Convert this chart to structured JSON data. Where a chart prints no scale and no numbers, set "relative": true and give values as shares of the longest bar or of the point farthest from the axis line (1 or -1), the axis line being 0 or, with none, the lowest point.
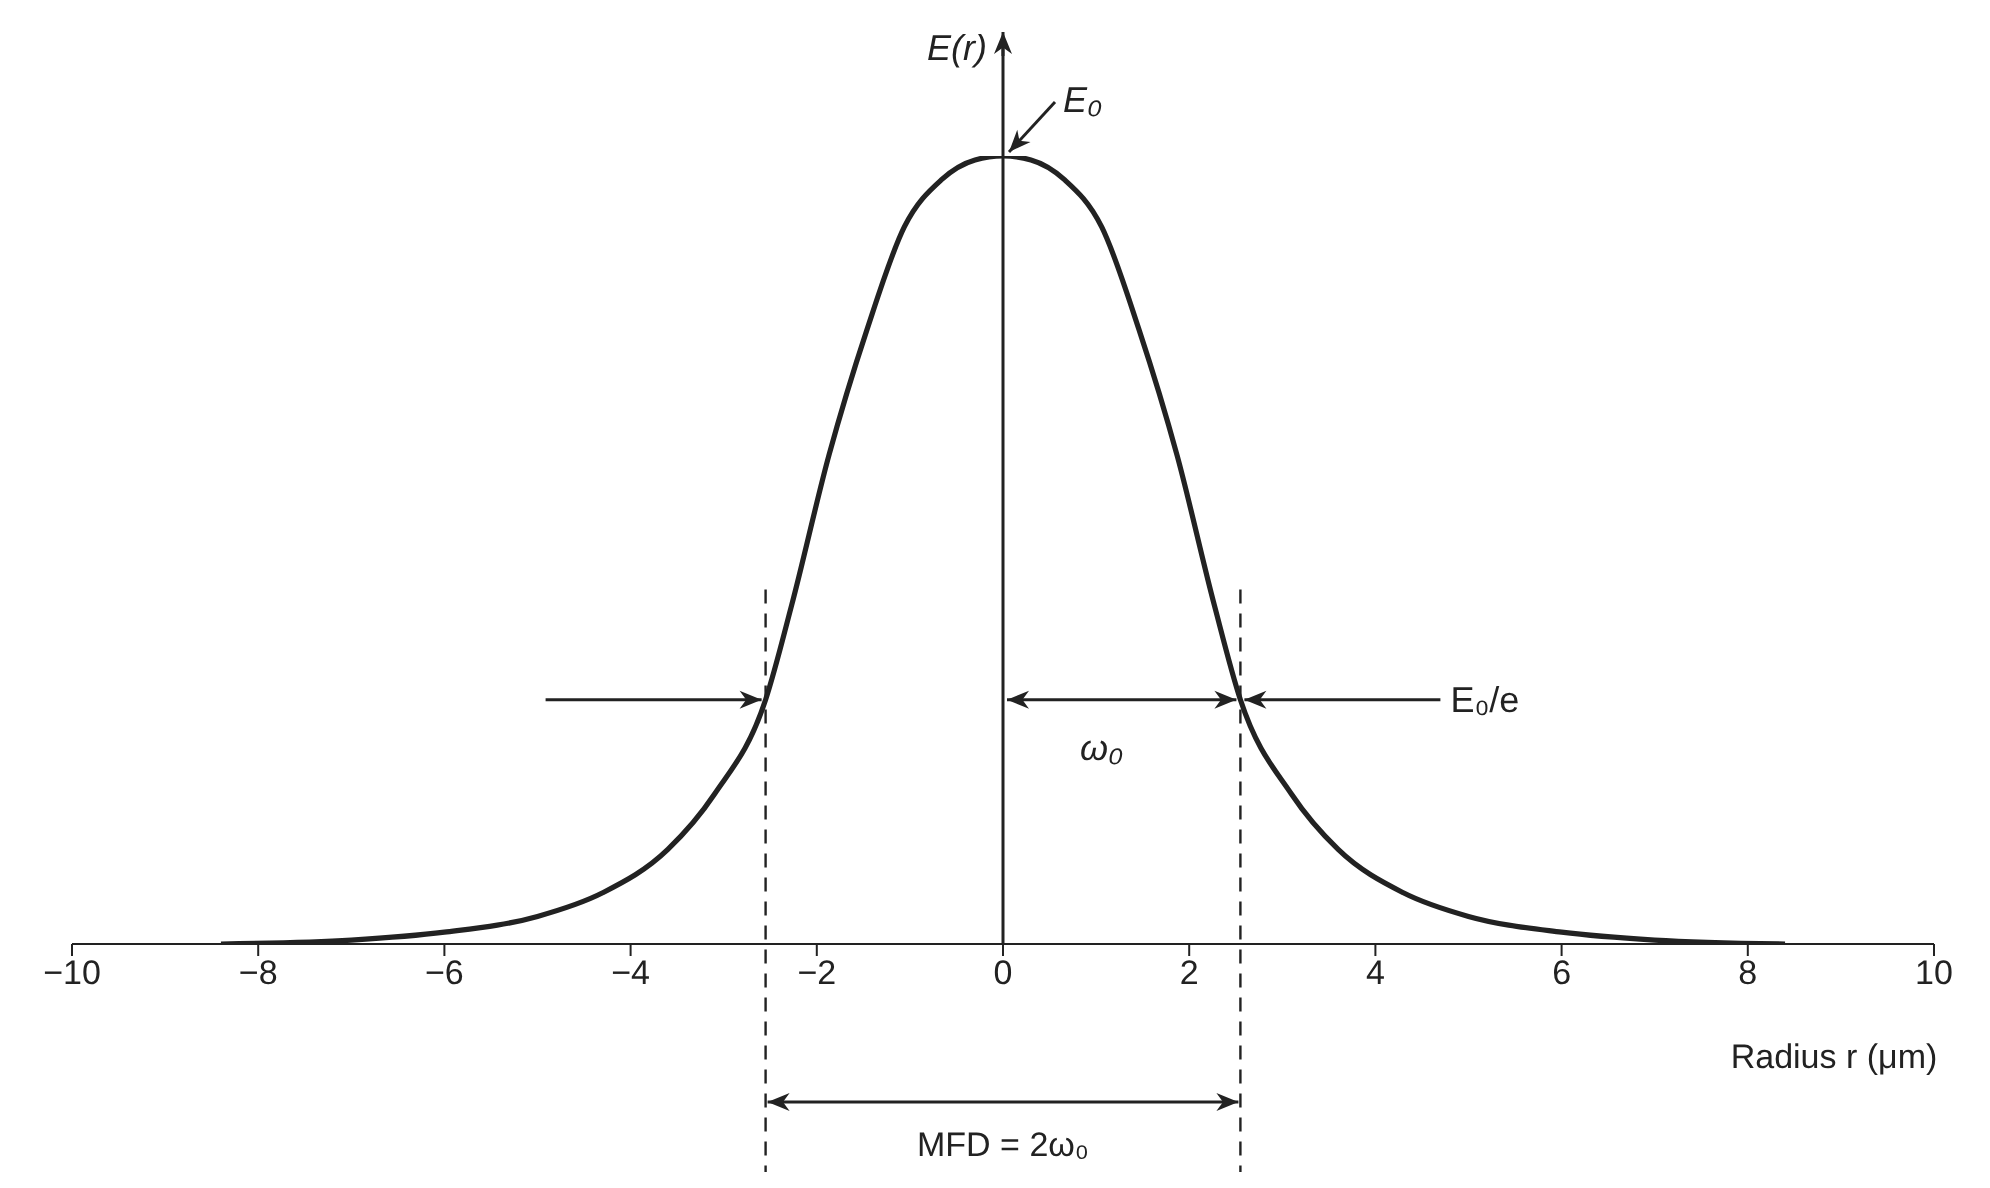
{
  "chart_data": {
    "type": "line",
    "relative": true,
    "xlabel": "Radius r (μm)",
    "ylabel": "E(r)",
    "x": [
      -8.4,
      -7.0,
      -6.0,
      -5.0,
      -4.3,
      -3.6,
      -3.1,
      -2.55,
      -2.27,
      -1.87,
      -1.46,
      -1.06,
      -0.66,
      -0.3,
      0,
      0.3,
      0.66,
      1.06,
      1.46,
      1.87,
      2.27,
      2.55,
      3.1,
      3.6,
      4.3,
      5.0,
      6.0,
      7.0,
      8.4
    ],
    "series": [
      {
        "color": "#222222",
        "values": [
          0.0,
          0.005,
          0.015,
          0.035,
          0.065,
          0.12,
          0.19,
          0.31,
          0.43,
          0.62,
          0.78,
          0.91,
          0.97,
          0.995,
          1.0,
          0.995,
          0.97,
          0.91,
          0.78,
          0.62,
          0.43,
          0.31,
          0.19,
          0.12,
          0.065,
          0.035,
          0.015,
          0.005,
          0.0
        ]
      }
    ],
    "xlim": [
      -10,
      10
    ],
    "xticks": [
      -10,
      -8,
      -6,
      -4,
      -2,
      0,
      2,
      4,
      6,
      8,
      10
    ],
    "ref_lines": [
      {
        "axis": "x",
        "value": -2.55,
        "line_style": "dashed"
      },
      {
        "axis": "x",
        "value": 2.55,
        "line_style": "dashed"
      }
    ],
    "annotations": [
      {
        "text": "E₀",
        "x": 0,
        "y": 1
      },
      {
        "text": "E₀/e",
        "x": 2.55,
        "y": 0.31
      },
      "ω₀",
      "MFD = 2ω₀"
    ],
    "legend": false,
    "marker": "none",
    "line_style": "solid"
  }
}
